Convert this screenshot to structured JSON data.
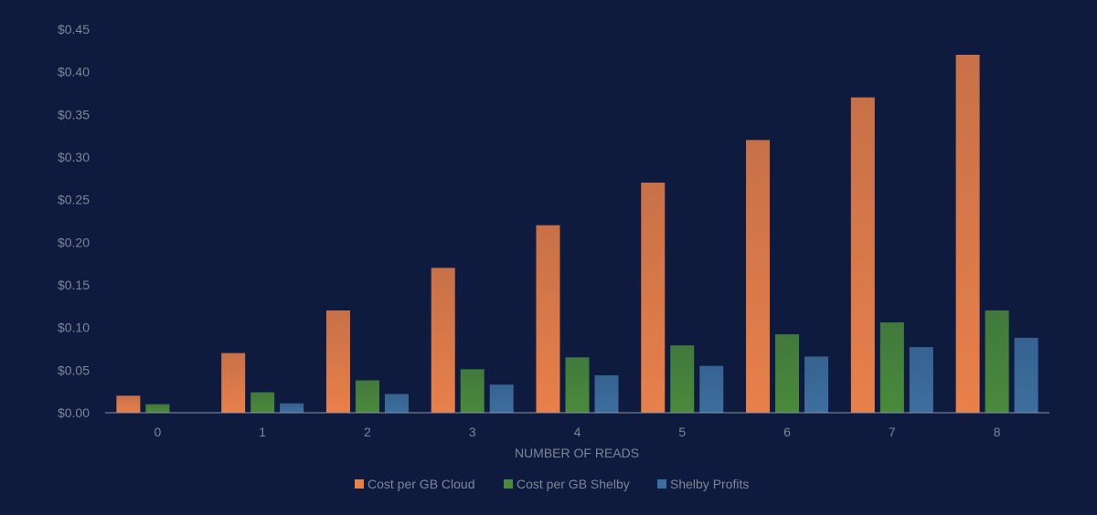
{
  "chart_data": {
    "type": "bar",
    "title": "",
    "xlabel": "NUMBER OF READS",
    "ylabel": "",
    "categories": [
      "0",
      "1",
      "2",
      "3",
      "4",
      "5",
      "6",
      "7",
      "8"
    ],
    "ylim": [
      0,
      0.45
    ],
    "ytick_values": [
      0,
      0.05,
      0.1,
      0.15,
      0.2,
      0.25,
      0.3,
      0.35,
      0.4,
      0.45
    ],
    "ytick_labels": [
      "$0.00",
      "$0.05",
      "$0.10",
      "$0.15",
      "$0.20",
      "$0.25",
      "$0.30",
      "$0.35",
      "$0.40",
      "$0.45"
    ],
    "grid": false,
    "legend_position": "bottom",
    "series": [
      {
        "name": "Cost per GB Cloud",
        "color": "#e8804a",
        "values": [
          0.02,
          0.07,
          0.12,
          0.17,
          0.22,
          0.27,
          0.32,
          0.37,
          0.42
        ]
      },
      {
        "name": "Cost per GB Shelby",
        "color": "#4a8a3c",
        "values": [
          0.01,
          0.024,
          0.038,
          0.051,
          0.065,
          0.079,
          0.092,
          0.106,
          0.12
        ]
      },
      {
        "name": "Shelby Profits",
        "color": "#3d6f9e",
        "values": [
          0,
          0.011,
          0.022,
          0.033,
          0.044,
          0.055,
          0.066,
          0.077,
          0.088
        ]
      }
    ]
  }
}
